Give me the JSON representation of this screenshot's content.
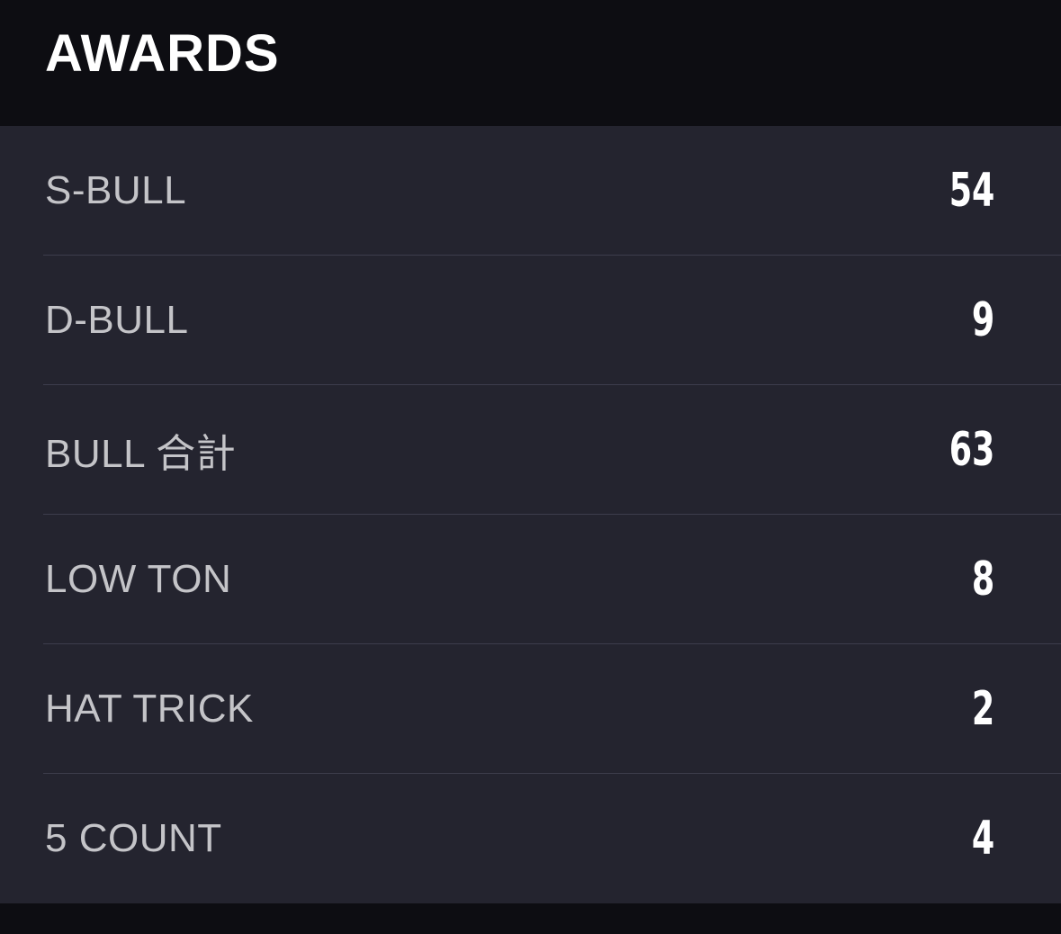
{
  "header": {
    "title": "AWARDS"
  },
  "table": {
    "rows": [
      [
        "S-BULL",
        "54"
      ],
      [
        "D-BULL",
        "9"
      ],
      [
        "BULL 合計",
        "63"
      ],
      [
        "LOW TON",
        "8"
      ],
      [
        "HAT TRICK",
        "2"
      ],
      [
        "5 COUNT",
        "4"
      ]
    ]
  }
}
